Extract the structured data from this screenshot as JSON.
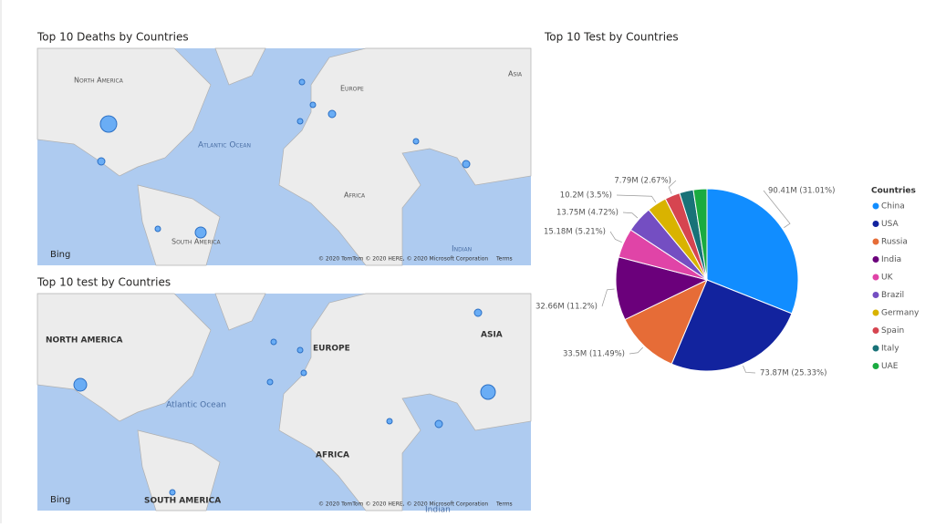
{
  "maps": [
    {
      "title": "Top 10 Deaths by Countries",
      "labels": [
        "North America",
        "Atlantic Ocean",
        "Europe",
        "Asia",
        "Africa",
        "South America",
        "Indian"
      ],
      "brand": "Bing",
      "copyright": "© 2020 TomTom © 2020 HERE, © 2020 Microsoft Corporation",
      "terms": "Terms"
    },
    {
      "title": "Top 10 test by Countries",
      "labels": [
        "NORTH AMERICA",
        "Atlantic Ocean",
        "EUROPE",
        "ASIA",
        "AFRICA",
        "SOUTH AMERICA",
        "Indian"
      ],
      "brand": "Bing",
      "copyright": "© 2020 TomTom © 2020 HERE, © 2020 Microsoft Corporation",
      "terms": "Terms"
    }
  ],
  "chart_data": {
    "type": "pie",
    "title": "Top 10 Test by Countries",
    "legend_title": "Countries",
    "legend": "right",
    "categories": [
      "China",
      "USA",
      "Russia",
      "India",
      "UK",
      "Brazil",
      "Germany",
      "Spain",
      "Italy",
      "UAE"
    ],
    "values": [
      90.41,
      73.87,
      33.5,
      32.66,
      15.18,
      13.75,
      10.2,
      7.79,
      7.2,
      7.0
    ],
    "value_labels": [
      "90.41M (31.01%)",
      "73.87M (25.33%)",
      "33.5M (11.49%)",
      "32.66M (11.2%)",
      "15.18M (5.21%)",
      "13.75M (4.72%)",
      "10.2M (3.5%)",
      "7.79M (2.67%)",
      null,
      null
    ],
    "colors": [
      "#118DFF",
      "#12239E",
      "#E66C37",
      "#6B007B",
      "#E044A7",
      "#744EC2",
      "#D9B300",
      "#D64550",
      "#197278",
      "#1AAB40"
    ]
  }
}
